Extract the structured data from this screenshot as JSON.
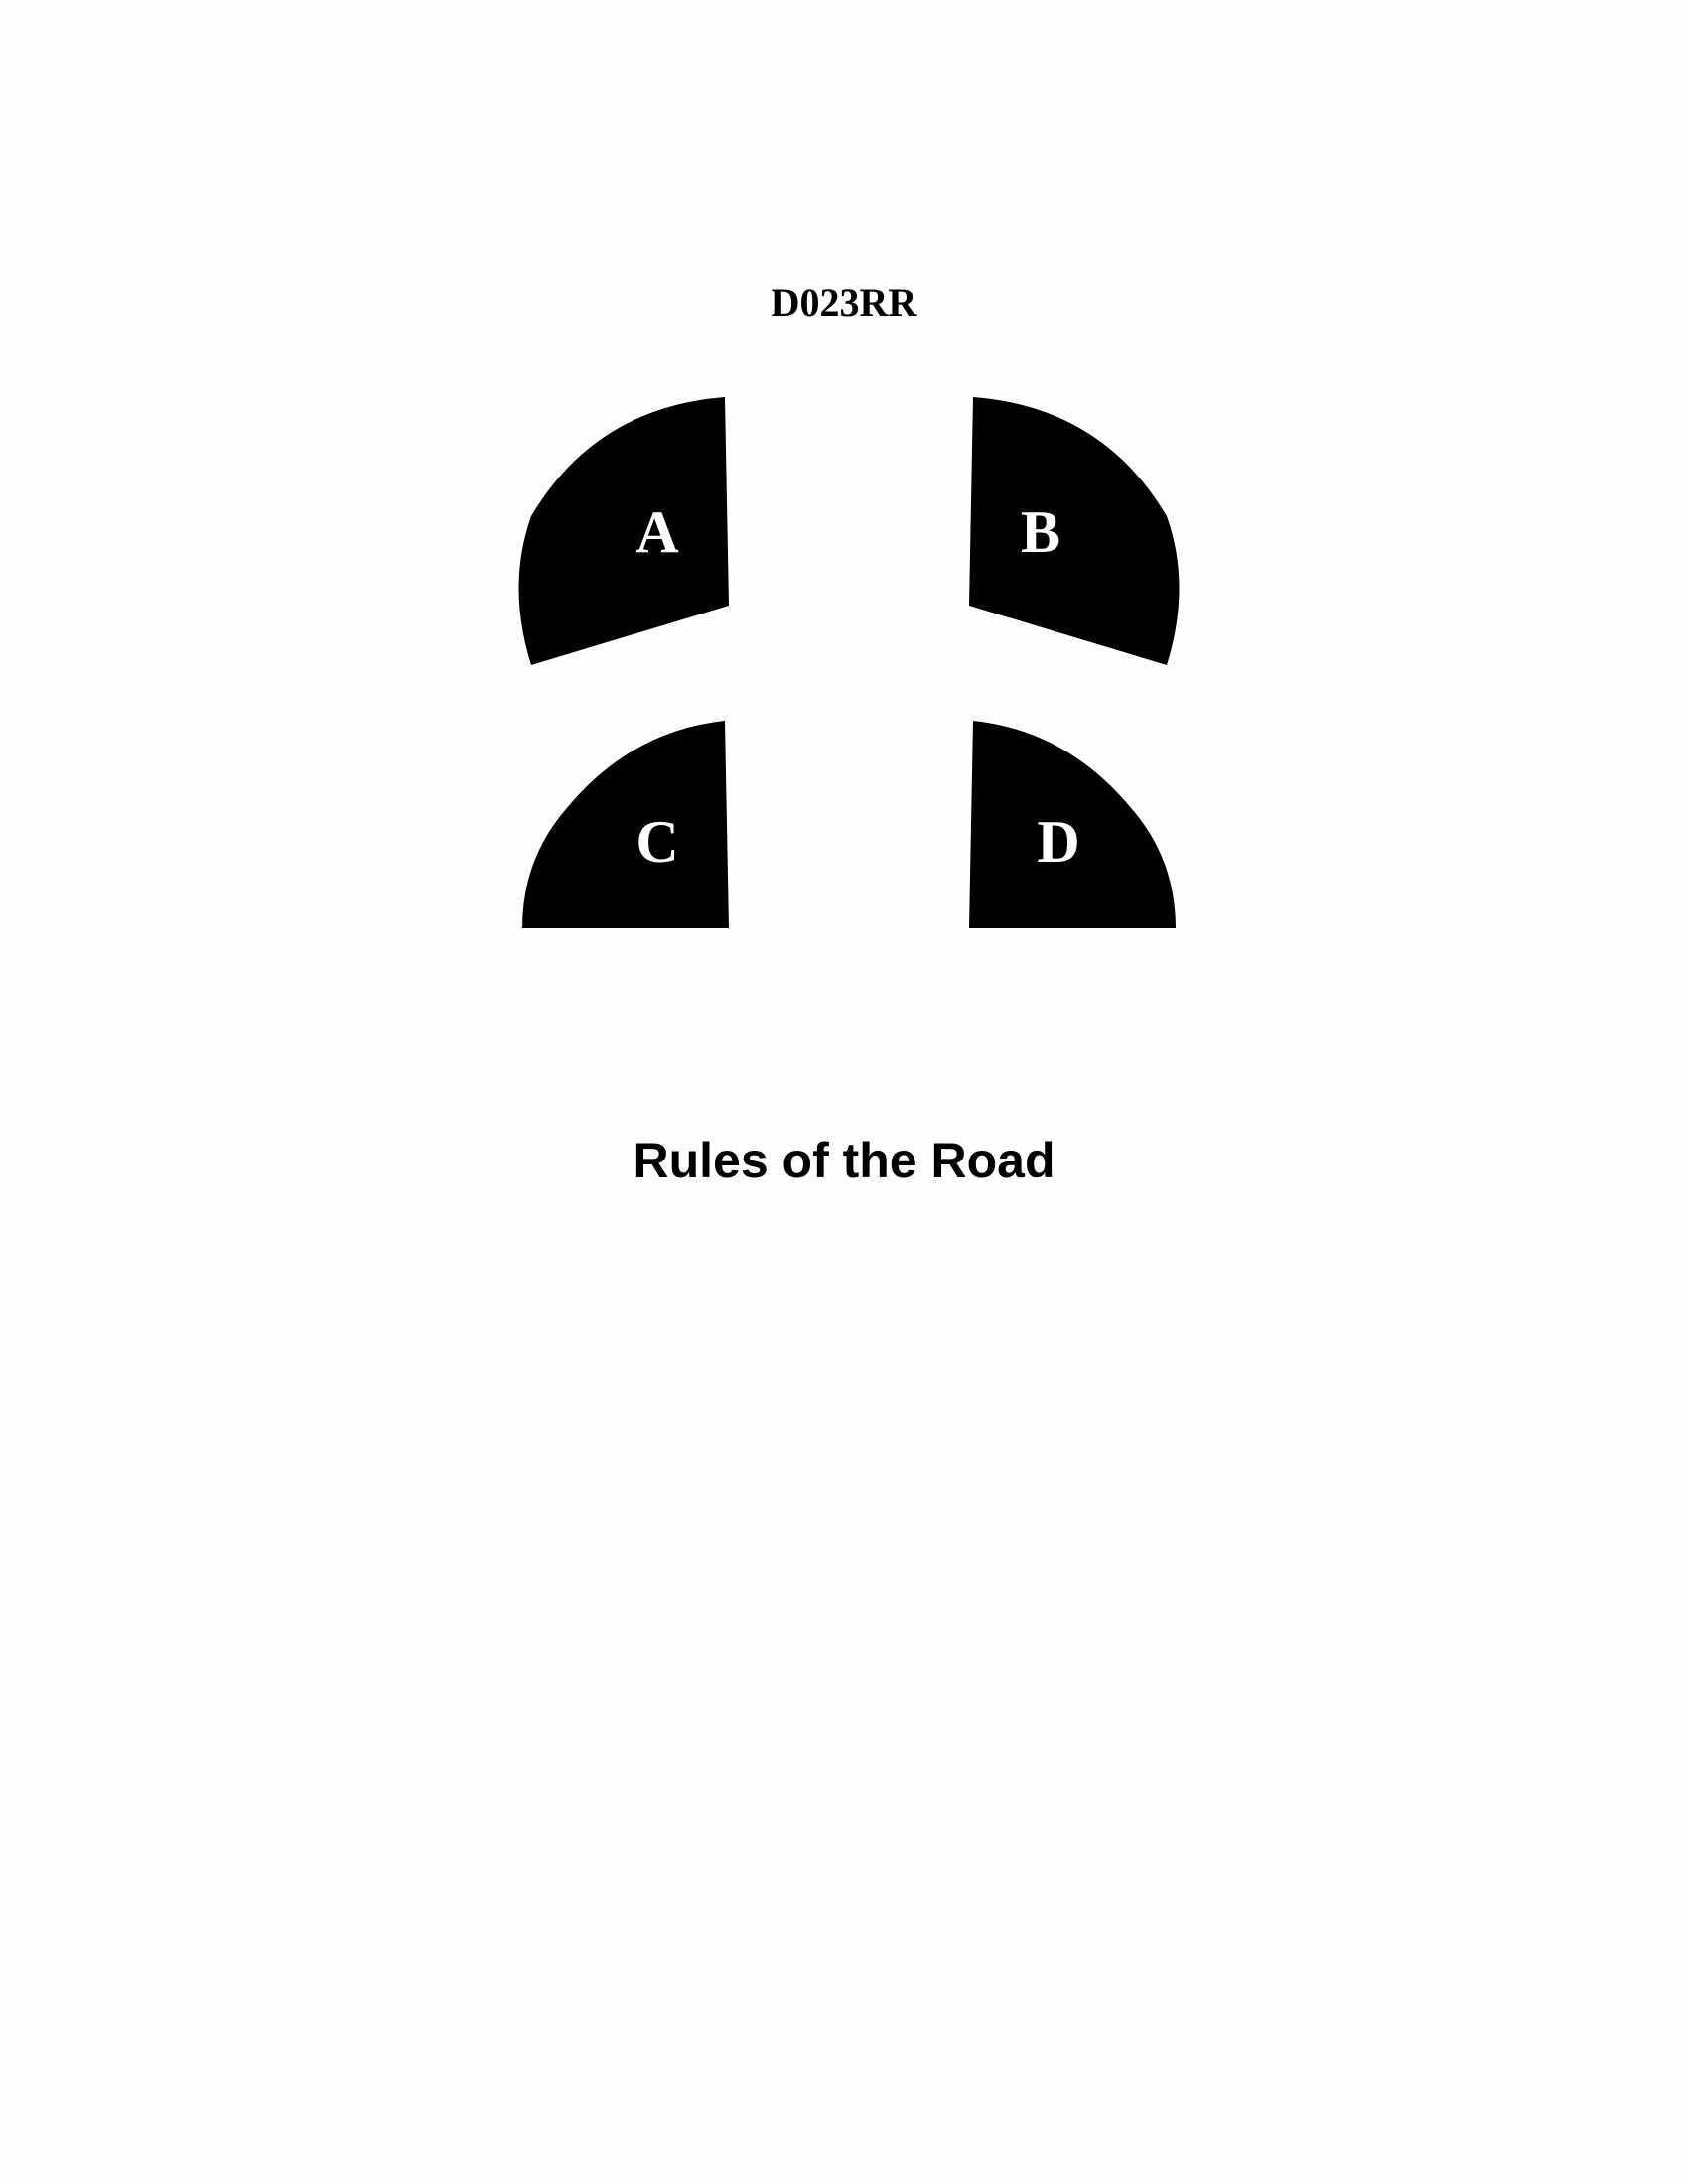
{
  "diagram": {
    "id_label": "D023RR",
    "colors": {
      "sector_fill": "#000000",
      "sector_label": "#ffffff",
      "page_background": "#fefefe"
    },
    "sectors": [
      {
        "label": "A"
      },
      {
        "label": "B"
      },
      {
        "label": "C"
      },
      {
        "label": "D"
      }
    ]
  },
  "caption": "Rules of the Road"
}
